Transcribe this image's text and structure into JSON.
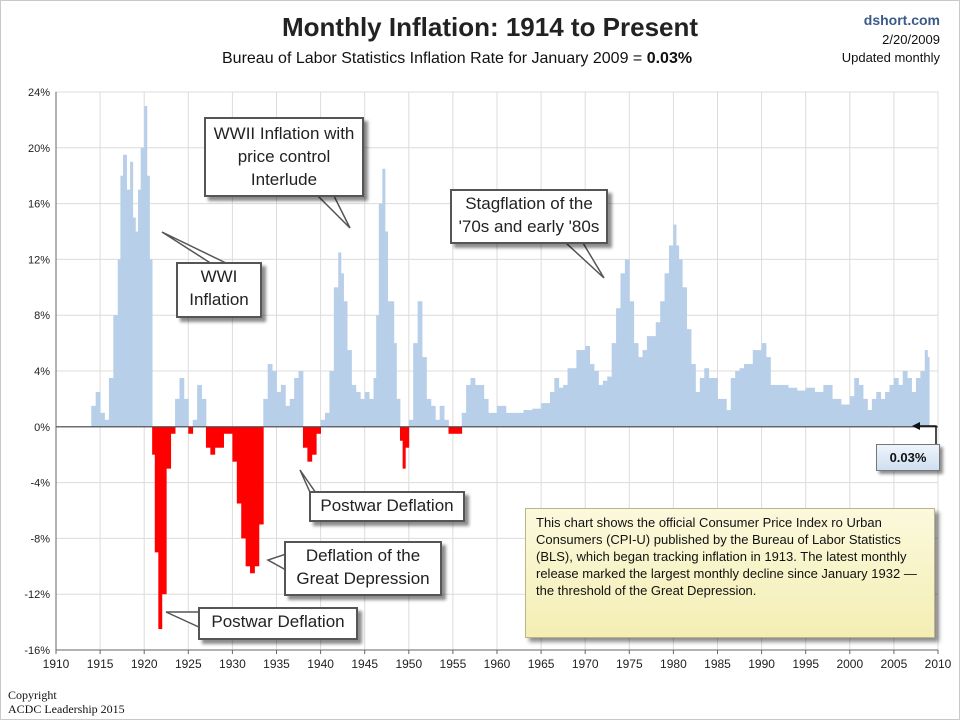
{
  "header": {
    "title": "Monthly Inflation: 1914 to Present",
    "subtitle_prefix": "Bureau of Labor Statistics Inflation Rate for January 2009 = ",
    "subtitle_value": "0.03%",
    "source_site": "dshort.com",
    "source_date": "2/20/2009",
    "source_note": "Updated monthly"
  },
  "chart_data": {
    "type": "area",
    "title": "Monthly Inflation: 1914 to Present",
    "subtitle": "Bureau of Labor Statistics Inflation Rate for January 2009 = 0.03%",
    "xlabel": "",
    "ylabel": "",
    "xlim": [
      1910,
      2010
    ],
    "ylim": [
      -16,
      24
    ],
    "x_ticks": [
      "1910",
      "1915",
      "1920",
      "1925",
      "1930",
      "1935",
      "1940",
      "1945",
      "1950",
      "1955",
      "1960",
      "1965",
      "1970",
      "1975",
      "1980",
      "1985",
      "1990",
      "1995",
      "2000",
      "2005",
      "2010"
    ],
    "y_ticks": [
      "24%",
      "20%",
      "16%",
      "12%",
      "8%",
      "4%",
      "0%",
      "-4%",
      "-8%",
      "-12%",
      "-16%"
    ],
    "grid": true,
    "positive_color": "#b8cfe9",
    "negative_color": "#ff0000",
    "x": [
      1914.0,
      1914.5,
      1915.0,
      1915.5,
      1916.0,
      1916.5,
      1917.0,
      1917.3,
      1917.6,
      1918.0,
      1918.4,
      1918.7,
      1919.0,
      1919.3,
      1919.6,
      1920.0,
      1920.3,
      1920.6,
      1920.9,
      1921.2,
      1921.6,
      1922.0,
      1922.5,
      1923.0,
      1923.5,
      1924.0,
      1924.5,
      1925.0,
      1925.5,
      1926.0,
      1926.5,
      1927.0,
      1927.5,
      1928.0,
      1928.5,
      1929.0,
      1929.5,
      1930.0,
      1930.5,
      1931.0,
      1931.5,
      1932.0,
      1932.5,
      1933.0,
      1933.5,
      1934.0,
      1934.5,
      1935.0,
      1935.5,
      1936.0,
      1936.5,
      1937.0,
      1937.5,
      1938.0,
      1938.5,
      1939.0,
      1939.5,
      1940.0,
      1940.5,
      1941.0,
      1941.5,
      1942.0,
      1942.3,
      1942.6,
      1943.0,
      1943.5,
      1944.0,
      1944.5,
      1945.0,
      1945.5,
      1946.0,
      1946.3,
      1946.6,
      1947.0,
      1947.3,
      1947.6,
      1948.0,
      1948.3,
      1948.6,
      1949.0,
      1949.3,
      1949.6,
      1950.0,
      1950.5,
      1951.0,
      1951.5,
      1952.0,
      1952.5,
      1953.0,
      1953.5,
      1954.0,
      1954.5,
      1955.0,
      1955.5,
      1956.0,
      1956.5,
      1957.0,
      1957.5,
      1958.0,
      1958.5,
      1959.0,
      1960.0,
      1961.0,
      1962.0,
      1963.0,
      1964.0,
      1965.0,
      1966.0,
      1966.5,
      1967.0,
      1967.5,
      1968.0,
      1969.0,
      1970.0,
      1970.5,
      1971.0,
      1971.5,
      1972.0,
      1972.5,
      1973.0,
      1973.5,
      1974.0,
      1974.5,
      1975.0,
      1975.5,
      1976.0,
      1976.5,
      1977.0,
      1977.5,
      1978.0,
      1978.5,
      1979.0,
      1979.5,
      1980.0,
      1980.3,
      1980.6,
      1981.0,
      1981.5,
      1982.0,
      1982.5,
      1983.0,
      1983.5,
      1984.0,
      1985.0,
      1986.0,
      1986.5,
      1987.0,
      1987.5,
      1988.0,
      1989.0,
      1990.0,
      1990.5,
      1991.0,
      1991.5,
      1992.0,
      1993.0,
      1994.0,
      1995.0,
      1996.0,
      1997.0,
      1998.0,
      1999.0,
      2000.0,
      2000.5,
      2001.0,
      2001.5,
      2002.0,
      2002.5,
      2003.0,
      2003.5,
      2004.0,
      2004.5,
      2005.0,
      2005.5,
      2006.0,
      2006.5,
      2007.0,
      2007.5,
      2008.0,
      2008.5,
      2008.8,
      2009.0
    ],
    "values": [
      1.5,
      2.5,
      1.0,
      0.5,
      3.5,
      8.0,
      12.0,
      18.0,
      19.5,
      17.0,
      19.0,
      15.0,
      14.0,
      17.0,
      20.0,
      23.0,
      18.0,
      12.0,
      -2.0,
      -9.0,
      -14.5,
      -12.0,
      -3.0,
      -0.5,
      2.0,
      3.5,
      2.0,
      -0.5,
      0.5,
      3.0,
      2.0,
      -1.5,
      -2.0,
      -1.5,
      -1.5,
      -0.5,
      -0.5,
      -2.5,
      -5.5,
      -8.0,
      -10.0,
      -10.5,
      -10.0,
      -7.0,
      2.0,
      4.5,
      4.0,
      2.5,
      3.0,
      1.5,
      2.0,
      3.5,
      4.0,
      -1.5,
      -2.5,
      -2.0,
      -0.5,
      0.5,
      1.0,
      4.0,
      10.0,
      12.5,
      11.0,
      9.0,
      5.5,
      3.0,
      2.5,
      2.0,
      2.5,
      2.0,
      3.5,
      8.0,
      16.0,
      18.5,
      14.0,
      9.0,
      9.0,
      6.0,
      2.0,
      -1.0,
      -3.0,
      -1.5,
      0.5,
      6.0,
      9.0,
      5.0,
      2.0,
      1.5,
      0.5,
      1.5,
      0.5,
      -0.5,
      -0.5,
      -0.5,
      1.0,
      3.0,
      3.5,
      3.0,
      3.0,
      2.0,
      1.0,
      1.5,
      1.0,
      1.0,
      1.2,
      1.3,
      1.7,
      2.5,
      3.5,
      2.8,
      3.0,
      4.2,
      5.5,
      5.8,
      4.5,
      4.0,
      3.0,
      3.3,
      3.6,
      6.0,
      8.5,
      11.0,
      12.0,
      9.0,
      6.0,
      5.0,
      5.5,
      6.5,
      6.5,
      7.5,
      9.0,
      11.0,
      13.0,
      14.5,
      13.0,
      12.0,
      10.0,
      7.0,
      4.5,
      2.5,
      3.5,
      4.2,
      3.5,
      2.0,
      1.2,
      3.5,
      4.0,
      4.2,
      4.5,
      5.5,
      6.0,
      5.0,
      3.0,
      3.0,
      3.0,
      2.8,
      2.6,
      2.8,
      2.5,
      3.0,
      2.0,
      1.6,
      2.2,
      3.5,
      3.0,
      2.0,
      1.2,
      2.0,
      2.5,
      2.0,
      2.5,
      3.0,
      3.5,
      3.0,
      4.0,
      3.5,
      2.5,
      3.5,
      4.0,
      5.5,
      5.0,
      0.03
    ]
  },
  "annotations": {
    "wwi": "WWI Inflation",
    "wwii": "WWII Inflation with price control Interlude",
    "stagflation": "Stagflation of the '70s and early '80s",
    "postwar_deflation_1": "Postwar Deflation",
    "great_depression": "Deflation of the Great Depression",
    "postwar_deflation_2": "Postwar Deflation",
    "latest_value": "0.03%"
  },
  "note": "This chart shows the official Consumer Price Index ro Urban Consumers (CPI-U) published by the Bureau of Labor Statistics (BLS), which began tracking inflation in 1913.  The latest  monthly release marked the largest monthly decline since January 1932 — the threshold of the Great Depression.",
  "copyright": {
    "line1": "Copyright",
    "line2": "ACDC Leadership 2015"
  }
}
